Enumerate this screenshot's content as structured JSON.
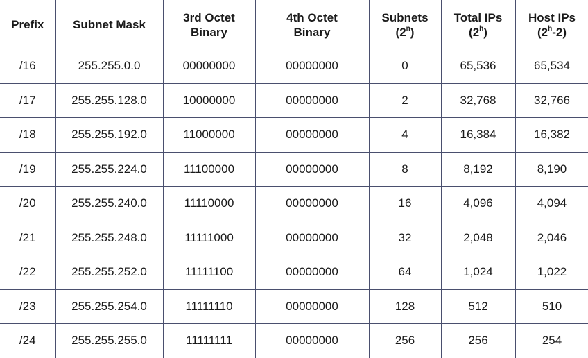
{
  "table": {
    "headers": [
      {
        "line1": "Prefix",
        "line2": ""
      },
      {
        "line1": "Subnet Mask",
        "line2": ""
      },
      {
        "line1": "3rd Octet",
        "line2": "Binary"
      },
      {
        "line1": "4th Octet",
        "line2": "Binary"
      },
      {
        "line1": "Subnets",
        "line2_pre": "(2",
        "line2_sup": "n",
        "line2_post": ")"
      },
      {
        "line1": "Total IPs",
        "line2_pre": "(2",
        "line2_sup": "h",
        "line2_post": ")"
      },
      {
        "line1": "Host IPs",
        "line2_pre": "(2",
        "line2_sup": "h",
        "line2_post": "-2)"
      }
    ],
    "rows": [
      [
        "/16",
        "255.255.0.0",
        "00000000",
        "00000000",
        "0",
        "65,536",
        "65,534"
      ],
      [
        "/17",
        "255.255.128.0",
        "10000000",
        "00000000",
        "2",
        "32,768",
        "32,766"
      ],
      [
        "/18",
        "255.255.192.0",
        "11000000",
        "00000000",
        "4",
        "16,384",
        "16,382"
      ],
      [
        "/19",
        "255.255.224.0",
        "11100000",
        "00000000",
        "8",
        "8,192",
        "8,190"
      ],
      [
        "/20",
        "255.255.240.0",
        "11110000",
        "00000000",
        "16",
        "4,096",
        "4,094"
      ],
      [
        "/21",
        "255.255.248.0",
        "11111000",
        "00000000",
        "32",
        "2,048",
        "2,046"
      ],
      [
        "/22",
        "255.255.252.0",
        "11111100",
        "00000000",
        "64",
        "1,024",
        "1,022"
      ],
      [
        "/23",
        "255.255.254.0",
        "11111110",
        "00000000",
        "128",
        "512",
        "510"
      ],
      [
        "/24",
        "255.255.255.0",
        "11111111",
        "00000000",
        "256",
        "256",
        "254"
      ]
    ]
  }
}
